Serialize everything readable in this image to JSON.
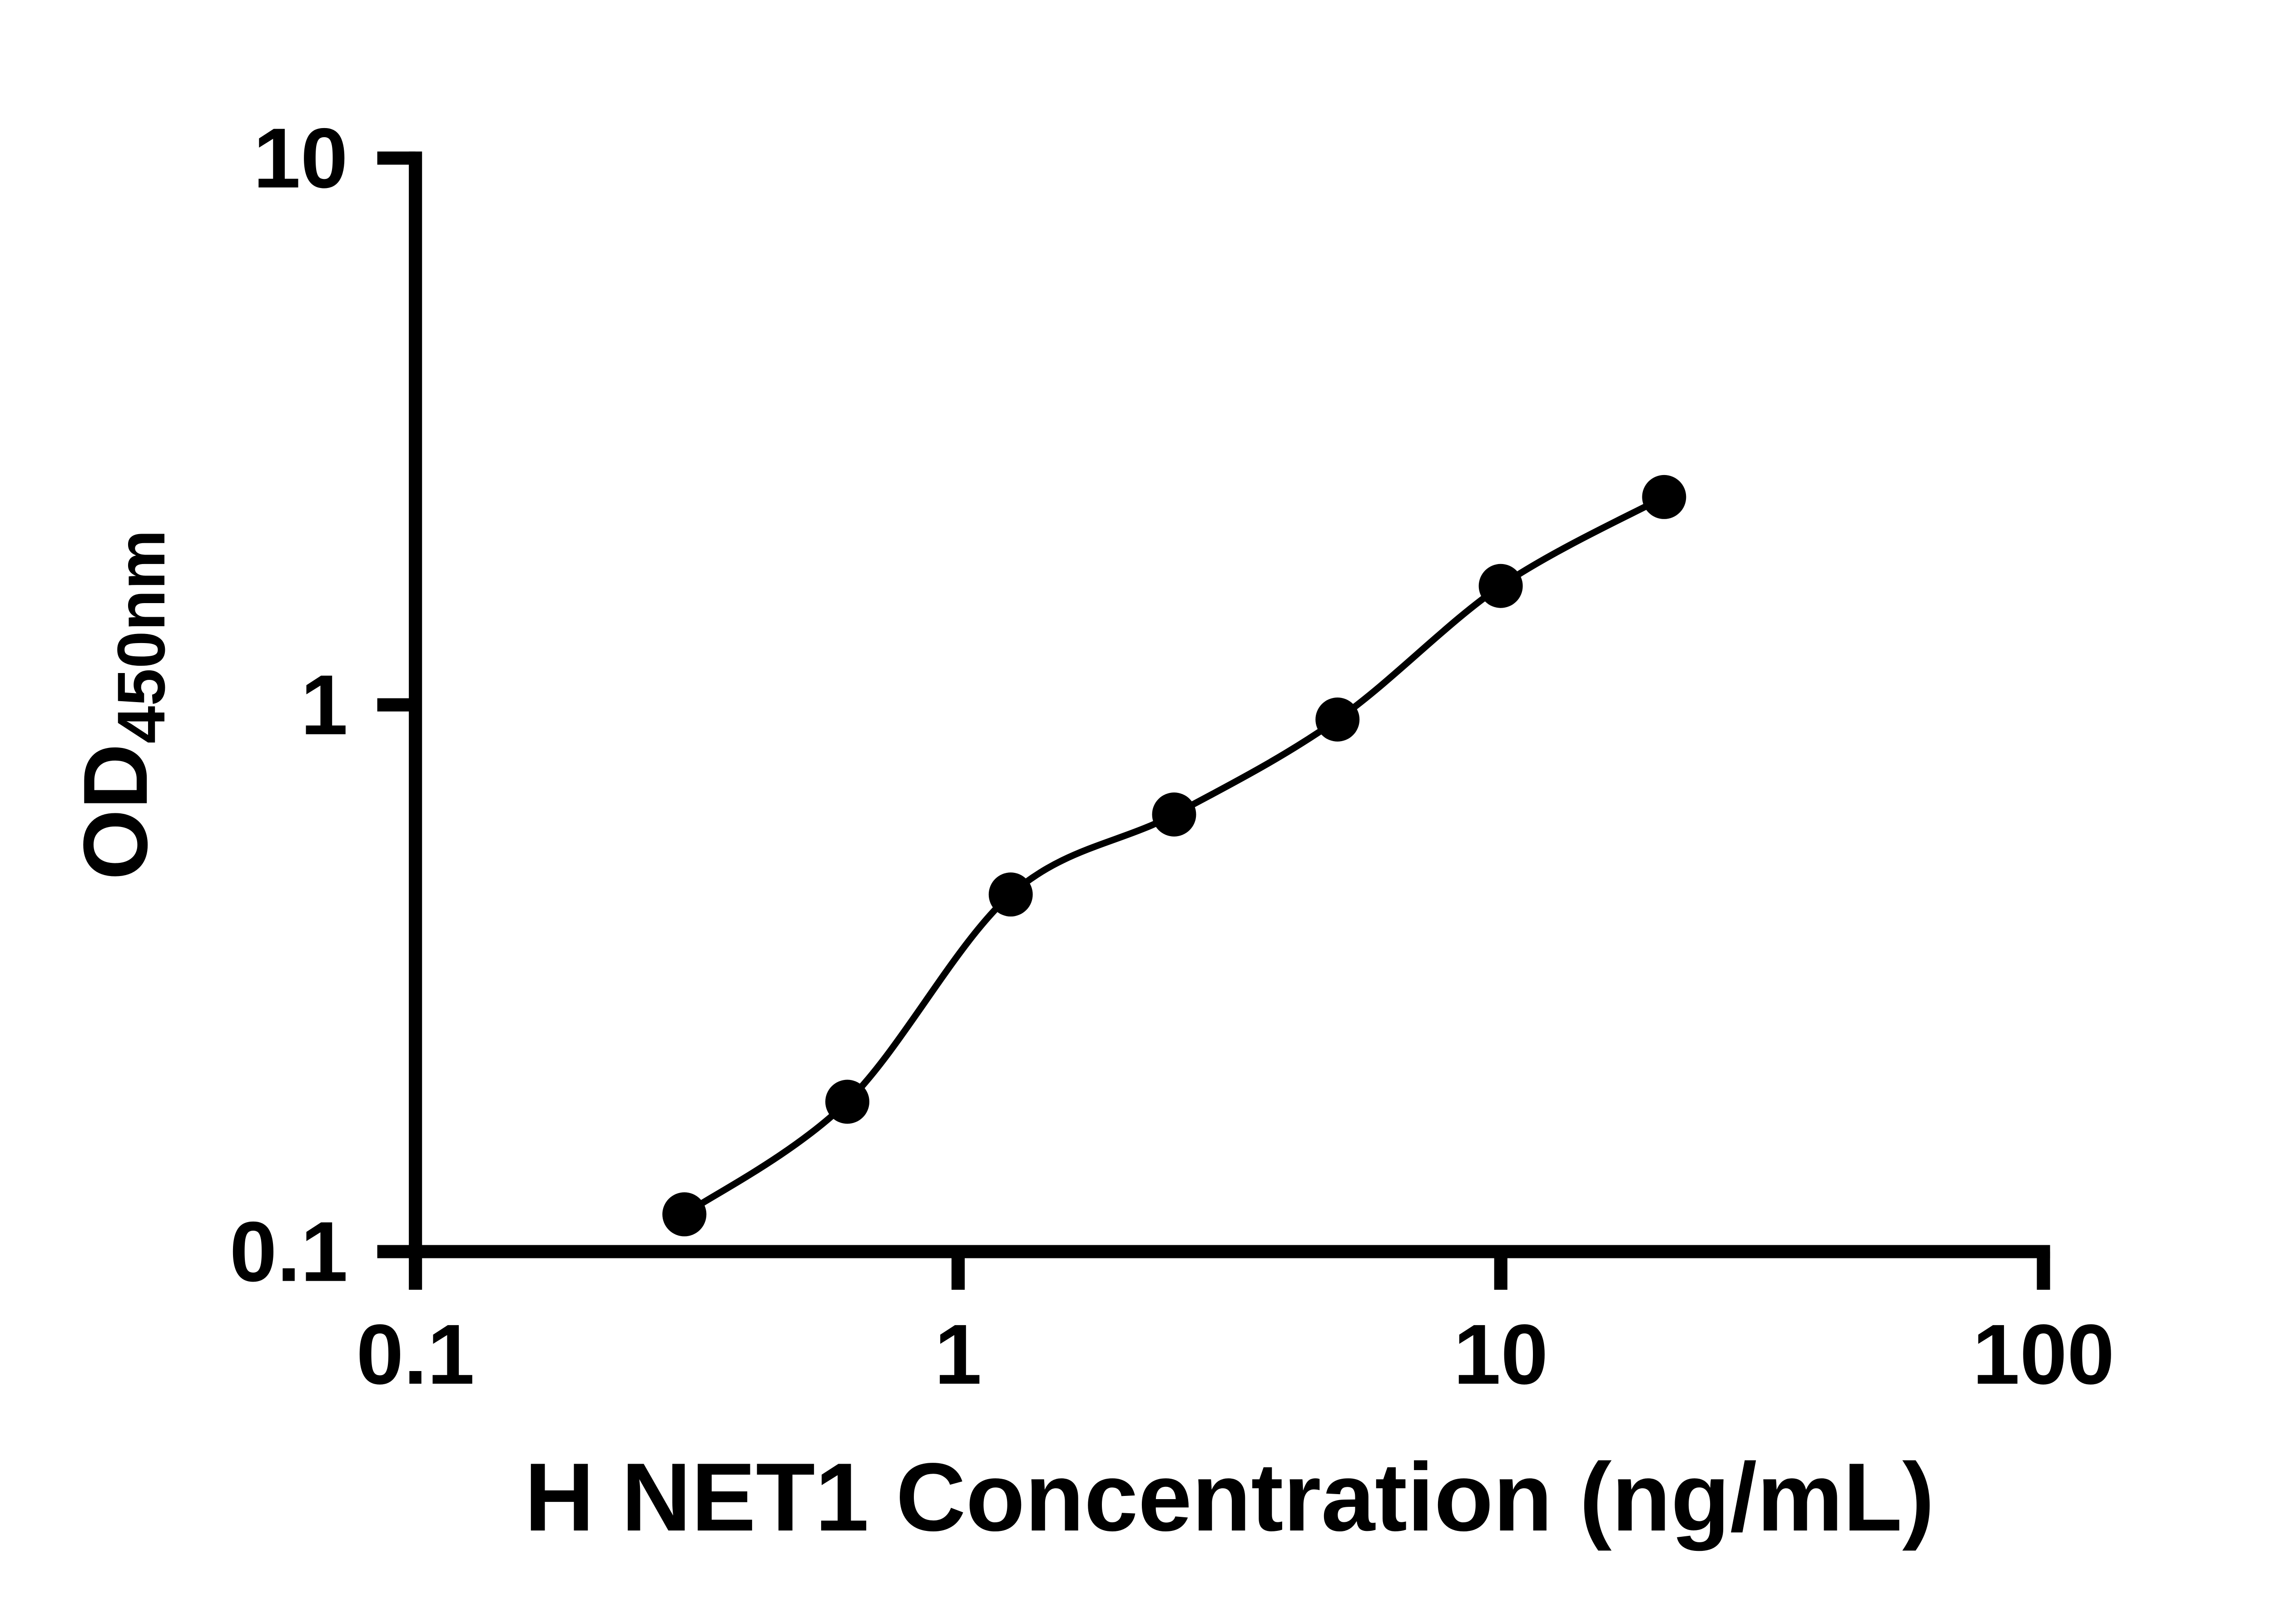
{
  "chart_data": {
    "type": "scatter",
    "title": "",
    "xlabel": "H NET1 Concentration (ng/mL)",
    "ylabel": "OD",
    "ylabel_subscript": "450nm",
    "x_scale": "log",
    "y_scale": "log",
    "xlim": [
      0.1,
      100
    ],
    "ylim": [
      0.1,
      10
    ],
    "x_ticks": {
      "values": [
        0.1,
        1,
        10,
        100
      ],
      "labels": [
        "0.1",
        "1",
        "10",
        "100"
      ]
    },
    "y_ticks": {
      "values": [
        0.1,
        1,
        10
      ],
      "labels": [
        "0.1",
        "1",
        "10"
      ]
    },
    "points": {
      "x": [
        0.313,
        0.625,
        1.25,
        2.5,
        5,
        10,
        20
      ],
      "y": [
        0.117,
        0.188,
        0.45,
        0.63,
        0.94,
        1.65,
        2.4
      ]
    },
    "fit_line": "smooth standard-curve fit through all points",
    "grid": false,
    "legend": "none",
    "marker_color": "#000000",
    "line_color": "#000000",
    "axis_color": "#000000",
    "background_color": "#ffffff"
  }
}
